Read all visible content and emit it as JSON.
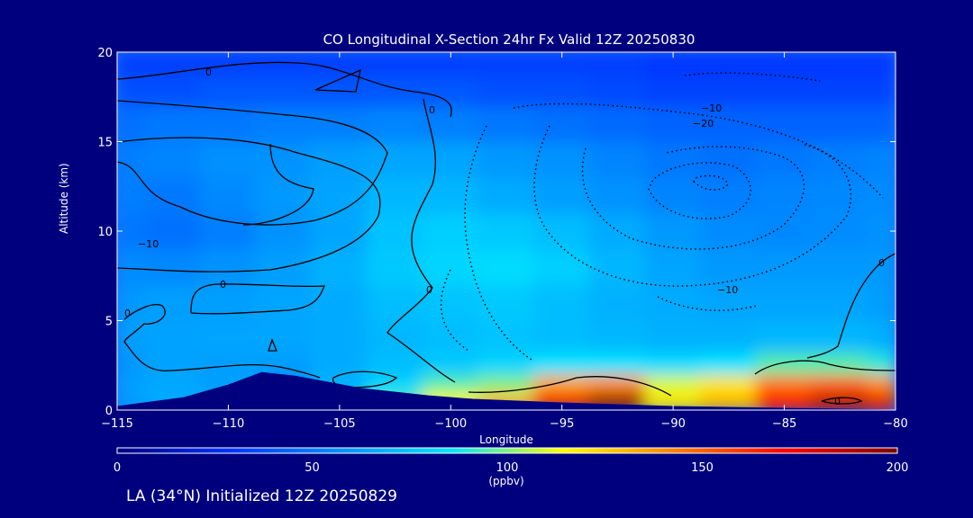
{
  "chart_data": {
    "type": "heatmap",
    "title": "CO Longitudinal X-Section 24hr  Fx Valid 12Z 20250830",
    "xlabel": "Longitude",
    "ylabel": "Altitude (km)",
    "xlim": [
      -115,
      -80
    ],
    "ylim": [
      0,
      20
    ],
    "x_ticks": [
      -115,
      -110,
      -105,
      -100,
      -95,
      -90,
      -85,
      -80
    ],
    "x_tick_labels": [
      "−115",
      "−110",
      "−105",
      "−100",
      "−95",
      "−90",
      "−85",
      "−80"
    ],
    "y_ticks": [
      0,
      5,
      10,
      15,
      20
    ],
    "colorbar": {
      "min": 0,
      "max": 200,
      "ticks": [
        0,
        50,
        100,
        150,
        200
      ],
      "unit": "(ppbv)",
      "colors": [
        "#000080",
        "#0030ff",
        "#0090ff",
        "#00e6ff",
        "#ffff00",
        "#ff8000",
        "#ff0000",
        "#800000"
      ]
    },
    "contour_labels": [
      "0",
      "0",
      "−10",
      "0",
      "0",
      "0",
      "−10",
      "−20",
      "−10",
      "0",
      "0"
    ],
    "x": [
      -115,
      -112.5,
      -110,
      -107.5,
      -105,
      -102.5,
      -100,
      -97.5,
      -95,
      -92.5,
      -90,
      -87.5,
      -85,
      -82.5,
      -80
    ],
    "y": [
      0.5,
      1.5,
      2.5,
      4,
      6,
      8,
      10,
      12,
      14,
      16,
      18,
      19.5
    ],
    "z": [
      [
        62,
        66,
        62,
        45,
        70,
        95,
        115,
        130,
        175,
        195,
        120,
        130,
        170,
        185,
        175
      ],
      [
        62,
        65,
        62,
        55,
        68,
        80,
        95,
        100,
        135,
        140,
        110,
        120,
        145,
        150,
        140
      ],
      [
        60,
        63,
        62,
        62,
        66,
        72,
        76,
        80,
        85,
        85,
        82,
        85,
        95,
        95,
        90
      ],
      [
        62,
        63,
        64,
        64,
        66,
        70,
        72,
        74,
        72,
        70,
        68,
        68,
        70,
        70,
        68
      ],
      [
        60,
        62,
        62,
        64,
        66,
        72,
        74,
        76,
        72,
        68,
        66,
        64,
        64,
        64,
        62
      ],
      [
        56,
        55,
        58,
        62,
        68,
        76,
        80,
        82,
        78,
        70,
        64,
        60,
        60,
        60,
        60
      ],
      [
        50,
        48,
        52,
        58,
        64,
        74,
        78,
        76,
        72,
        66,
        60,
        56,
        55,
        56,
        58
      ],
      [
        52,
        50,
        55,
        60,
        64,
        70,
        70,
        66,
        62,
        58,
        54,
        52,
        54,
        55,
        56
      ],
      [
        52,
        54,
        57,
        58,
        62,
        64,
        64,
        60,
        58,
        54,
        50,
        48,
        50,
        52,
        54
      ],
      [
        48,
        50,
        50,
        52,
        52,
        54,
        52,
        50,
        48,
        46,
        44,
        44,
        44,
        44,
        44
      ],
      [
        38,
        38,
        40,
        40,
        40,
        40,
        40,
        38,
        38,
        36,
        34,
        34,
        34,
        34,
        34
      ],
      [
        32,
        32,
        32,
        32,
        32,
        32,
        32,
        32,
        32,
        32,
        30,
        30,
        30,
        30,
        30
      ]
    ],
    "terrain": [
      [
        -115,
        0.2
      ],
      [
        -112,
        0.7
      ],
      [
        -110,
        1.4
      ],
      [
        -108.5,
        2.1
      ],
      [
        -107,
        1.9
      ],
      [
        -104,
        1.2
      ],
      [
        -101,
        0.8
      ],
      [
        -99,
        0.6
      ],
      [
        -95,
        0.4
      ],
      [
        -90,
        0.2
      ],
      [
        -85,
        0.1
      ],
      [
        -80,
        0
      ]
    ]
  },
  "footer_text": "LA (34°N) Initialized 12Z 20250829"
}
